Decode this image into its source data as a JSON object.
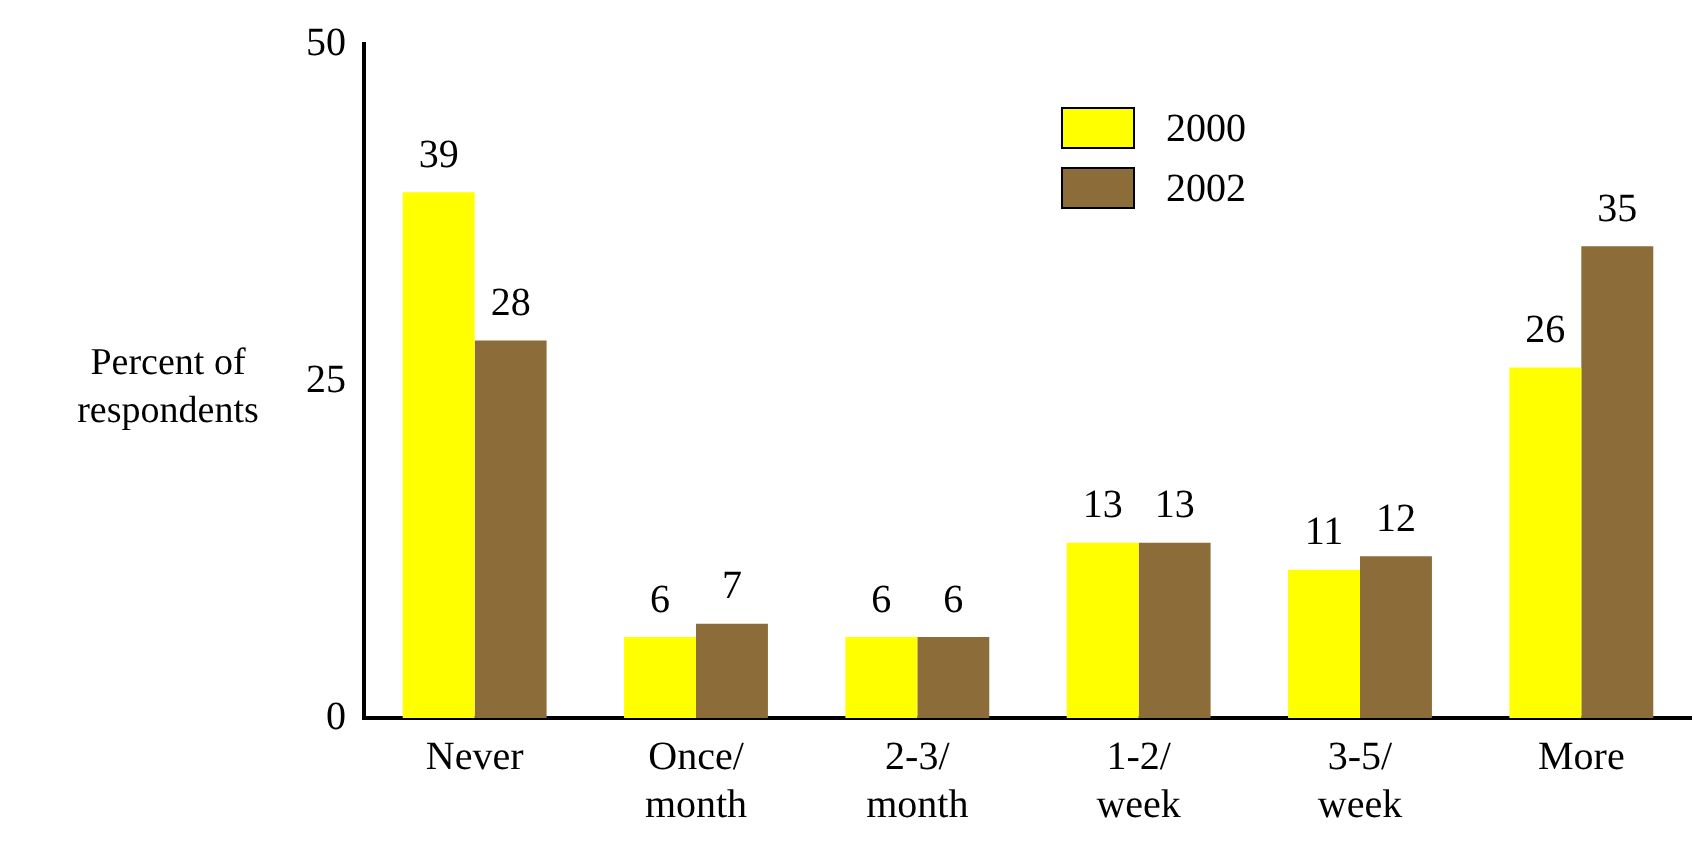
{
  "chart_data": {
    "type": "bar",
    "ylabel": "Percent of respondents",
    "categories": [
      "Never",
      "Once/\nmonth",
      "2-3/\nmonth",
      "1-2/\nweek",
      "3-5/\nweek",
      "More"
    ],
    "series": [
      {
        "name": "2000",
        "color": "#ffff00",
        "values": [
          39,
          6,
          6,
          13,
          11,
          26
        ]
      },
      {
        "name": "2002",
        "color": "#8c6d3a",
        "values": [
          28,
          7,
          6,
          13,
          12,
          35
        ]
      }
    ],
    "ylim": [
      0,
      50
    ],
    "yticks": [
      0,
      25,
      50
    ],
    "grid": false,
    "legend": "top right",
    "data_labels": true
  }
}
